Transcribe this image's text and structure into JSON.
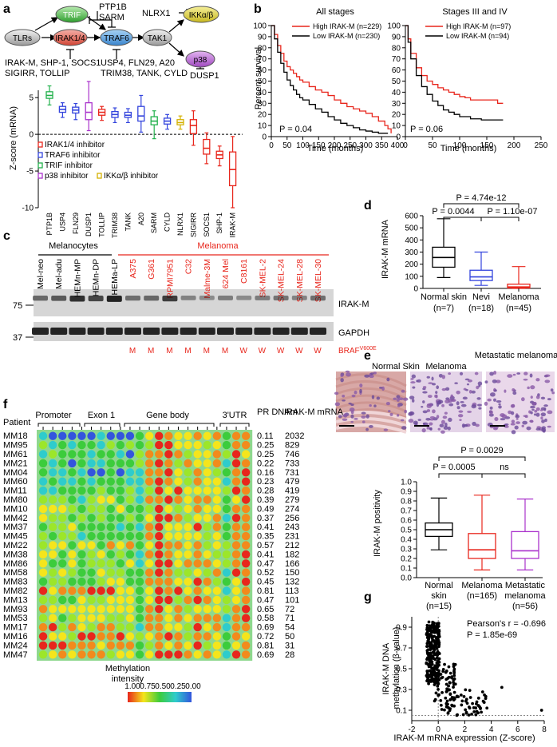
{
  "panels": {
    "a": "a",
    "b": "b",
    "c": "c",
    "d": "d",
    "e": "e",
    "f": "f",
    "g": "g"
  },
  "panel_a": {
    "pathway_nodes": [
      "TLRs",
      "TRIF",
      "IRAK1/4",
      "TRAF6",
      "TAK1",
      "IKKα/β",
      "p38"
    ],
    "labels": {
      "ptp1b_sarm": [
        "PTP1B",
        "SARM"
      ],
      "nlrx1": "NLRX1",
      "irak_inhib": [
        "IRAK-M, SHP-1, SOCS1",
        "SIGIRR, TOLLIP"
      ],
      "traf6_inhib": [
        "USP4, FLN29, A20",
        "TRIM38, TANK, CYLD"
      ],
      "p38_inhib": "DUSP1"
    },
    "legend": [
      "IRAK1/4 inhibitor",
      "TRAF6 inhibitor",
      "TRIF inhibitor",
      "p38 inhibitor",
      "IKKα/β inhibitor"
    ]
  },
  "chart_data": [
    {
      "id": "a",
      "type": "box",
      "ylabel": "Z-score (mRNA)",
      "ylim": [
        -10,
        6
      ],
      "yticks": [
        -10,
        -5,
        0,
        5
      ],
      "categories": [
        "PTP1B",
        "USP4",
        "FLN29",
        "DUSP1",
        "TOLLIP",
        "TRIM38",
        "TANK",
        "A20",
        "SARM",
        "CYLD",
        "NLRX1",
        "SIGIRR",
        "SOCS1",
        "SHP-1",
        "IRAK-M"
      ],
      "colors": [
        "#22b14c",
        "#3344dd",
        "#3344dd",
        "#aa33cc",
        "#e8261c",
        "#3344dd",
        "#3344dd",
        "#3344dd",
        "#22b14c",
        "#3344dd",
        "#d4b000",
        "#e8261c",
        "#e8261c",
        "#e8261c",
        "#e8261c"
      ],
      "boxes": [
        {
          "min": 4.0,
          "q1": 4.9,
          "med": 5.3,
          "q3": 5.8,
          "max": 6.6
        },
        {
          "min": 2.3,
          "q1": 3.0,
          "med": 3.4,
          "q3": 3.8,
          "max": 4.3
        },
        {
          "min": 2.0,
          "q1": 2.9,
          "med": 3.3,
          "q3": 3.7,
          "max": 4.2
        },
        {
          "min": 0.5,
          "q1": 2.0,
          "med": 3.0,
          "q3": 4.3,
          "max": 7.2
        },
        {
          "min": 1.9,
          "q1": 2.6,
          "med": 3.0,
          "q3": 3.4,
          "max": 3.8
        },
        {
          "min": 1.6,
          "q1": 2.3,
          "med": 2.7,
          "q3": 3.1,
          "max": 3.6
        },
        {
          "min": 1.6,
          "q1": 2.3,
          "med": 2.6,
          "q3": 3.0,
          "max": 3.5
        },
        {
          "min": 0.3,
          "q1": 1.8,
          "med": 2.5,
          "q3": 3.8,
          "max": 5.3
        },
        {
          "min": -0.6,
          "q1": 1.3,
          "med": 1.8,
          "q3": 2.4,
          "max": 3.2
        },
        {
          "min": 0.7,
          "q1": 1.4,
          "med": 1.8,
          "q3": 2.2,
          "max": 2.7
        },
        {
          "min": 0.7,
          "q1": 1.3,
          "med": 1.6,
          "q3": 2.0,
          "max": 2.5
        },
        {
          "min": -1.5,
          "q1": 0.1,
          "med": 1.2,
          "q3": 2.0,
          "max": 3.2
        },
        {
          "min": -4.0,
          "q1": -2.7,
          "med": -1.9,
          "q3": -0.7,
          "max": 0.2
        },
        {
          "min": -4.3,
          "q1": -3.3,
          "med": -2.8,
          "q3": -2.3,
          "max": -1.6
        },
        {
          "min": -10.0,
          "q1": -7.0,
          "med": -4.8,
          "q3": -2.4,
          "max": -0.3
        }
      ]
    },
    {
      "id": "b1",
      "type": "line",
      "title": "All stages",
      "xlabel": "Time (months)",
      "ylabel": "Percent survival",
      "xlim": [
        0,
        400
      ],
      "ylim": [
        0,
        100
      ],
      "xticks": [
        0,
        50,
        100,
        150,
        200,
        250,
        300,
        350,
        400
      ],
      "yticks": [
        0,
        10,
        20,
        30,
        40,
        50,
        60,
        70,
        80,
        90,
        100
      ],
      "annotation": "P = 0.04",
      "series": [
        {
          "name": "High IRAK-M (n=229)",
          "color": "#e8261c",
          "x": [
            0,
            10,
            20,
            30,
            40,
            50,
            60,
            70,
            80,
            90,
            100,
            120,
            140,
            160,
            180,
            200,
            220,
            240,
            260,
            280,
            300,
            320,
            340,
            360,
            370,
            380
          ],
          "y": [
            100,
            92,
            82,
            75,
            68,
            63,
            60,
            57,
            54,
            51,
            49,
            45,
            42,
            40,
            37,
            33,
            30,
            27,
            25,
            23,
            21,
            18,
            14,
            10,
            7,
            3
          ]
        },
        {
          "name": "Low IRAK-M (n=230)",
          "color": "#000000",
          "x": [
            0,
            10,
            20,
            30,
            40,
            50,
            60,
            70,
            80,
            90,
            100,
            120,
            140,
            160,
            180,
            200,
            220,
            240,
            260,
            280,
            300,
            320,
            340,
            370
          ],
          "y": [
            100,
            88,
            76,
            66,
            58,
            51,
            46,
            42,
            38,
            35,
            33,
            29,
            25,
            22,
            18,
            15,
            12,
            10,
            8,
            6,
            5,
            4,
            3,
            3
          ]
        }
      ]
    },
    {
      "id": "b2",
      "type": "line",
      "title": "Stages III and IV",
      "xlabel": "Time (months)",
      "xlim": [
        0,
        250
      ],
      "ylim": [
        0,
        100
      ],
      "xticks": [
        0,
        50,
        100,
        150,
        200,
        250
      ],
      "yticks": [
        0,
        10,
        20,
        30,
        40,
        50,
        60,
        70,
        80,
        90,
        100
      ],
      "annotation": "P = 0.06",
      "series": [
        {
          "name": "High IRAK-M (n=97)",
          "color": "#e8261c",
          "x": [
            0,
            5,
            10,
            20,
            30,
            40,
            50,
            60,
            70,
            80,
            90,
            100,
            110,
            120,
            140,
            160,
            170,
            180
          ],
          "y": [
            100,
            88,
            75,
            62,
            55,
            50,
            47,
            44,
            42,
            40,
            38,
            36,
            35,
            33,
            33,
            33,
            30,
            30
          ]
        },
        {
          "name": "Low IRAK-M (n=94)",
          "color": "#000000",
          "x": [
            0,
            5,
            10,
            20,
            30,
            40,
            50,
            60,
            70,
            80,
            90,
            100,
            120,
            140,
            160,
            180
          ],
          "y": [
            100,
            85,
            70,
            55,
            45,
            38,
            32,
            28,
            24,
            22,
            20,
            18,
            16,
            15,
            15,
            15
          ]
        }
      ]
    },
    {
      "id": "d",
      "type": "box",
      "ylabel": "IRAK-M mRNA",
      "ylim": [
        0,
        600
      ],
      "yticks": [
        0,
        100,
        200,
        300,
        400,
        500,
        600
      ],
      "categories": [
        "Normal skin",
        "Nevi",
        "Melanoma"
      ],
      "sublabels": [
        "(n=7)",
        "(n=18)",
        "(n=45)"
      ],
      "colors": [
        "#000000",
        "#3344dd",
        "#e8261c"
      ],
      "boxes": [
        {
          "min": 90,
          "q1": 175,
          "med": 255,
          "q3": 340,
          "max": 575
        },
        {
          "min": 25,
          "q1": 65,
          "med": 95,
          "q3": 150,
          "max": 300
        },
        {
          "min": 0,
          "q1": 3,
          "med": 12,
          "q3": 35,
          "max": 180
        }
      ],
      "pvalues": [
        "P = 4.74e-12",
        "P = 0.0044",
        "P = 1.10e-07"
      ]
    },
    {
      "id": "e",
      "type": "box",
      "ylabel": "IRAK-M positivity",
      "ylim": [
        0,
        1.0
      ],
      "yticks": [
        "0.0",
        "0.1",
        "0.2",
        "0.3",
        "0.4",
        "0.5",
        "0.6",
        "0.7",
        "0.8",
        "0.9",
        "1.0"
      ],
      "categories": [
        "Normal skin",
        "Melanoma",
        "Metastatic melanoma"
      ],
      "sublabels": [
        "(n=15)",
        "(n=165)",
        "(n=56)"
      ],
      "colors": [
        "#000000",
        "#e8261c",
        "#aa33cc"
      ],
      "boxes": [
        {
          "min": 0.29,
          "q1": 0.43,
          "med": 0.5,
          "q3": 0.57,
          "max": 0.83
        },
        {
          "min": 0.08,
          "q1": 0.2,
          "med": 0.29,
          "q3": 0.46,
          "max": 0.86
        },
        {
          "min": 0.08,
          "q1": 0.2,
          "med": 0.28,
          "q3": 0.48,
          "max": 0.82
        }
      ],
      "pvalues": [
        "P = 0.0029",
        "P = 0.0005",
        "ns"
      ]
    },
    {
      "id": "g",
      "type": "scatter",
      "xlabel": "IRAK-M mRNA expression (Z-score)",
      "ylabel": "IRAK-M DNA methylation (β-value)",
      "xlim": [
        -2,
        8
      ],
      "ylim": [
        0,
        1
      ],
      "xticks": [
        -2,
        0,
        2,
        4,
        6,
        8
      ],
      "yticks": [
        0.1,
        0.3,
        0.5,
        0.7,
        0.9
      ],
      "annotation": [
        "Pearson's r = -0.696",
        "P = 1.85e-69"
      ]
    }
  ],
  "panel_b": {
    "title_all": "All stages",
    "title_34": "Stages III and IV",
    "ylabel": "Percent survival",
    "xlabel": "Time (months)",
    "p_all": "P = 0.04",
    "p_34": "P = 0.06",
    "legend_all": [
      "High IRAK-M (n=229)",
      "Low IRAK-M (n=230)"
    ],
    "legend_34": [
      "High IRAK-M (n=97)",
      "Low IRAK-M (n=94)"
    ]
  },
  "panel_c": {
    "group_melanocytes": "Melanocytes",
    "group_melanoma": "Melanoma",
    "lanes": [
      "Mel-neo",
      "Mel-adu",
      "HEMn-MP",
      "HEMn-DP",
      "HEMa-LP",
      "A375",
      "G361",
      "RPMI7951",
      "C32",
      "Malme-3M",
      "624 Mel",
      "C8161",
      "SK-MEL-2",
      "SK-MEL-24",
      "SK-MEL-28",
      "SK-MEL-30"
    ],
    "markers": [
      "75",
      "37"
    ],
    "bands": [
      "IRAK-M",
      "GAPDH"
    ],
    "braf": [
      "M",
      "M",
      "M",
      "M",
      "M",
      "M",
      "W",
      "W",
      "W",
      "W",
      "W"
    ],
    "braf_label": "BRAF",
    "braf_sup": "V600E",
    "irak_intensity": [
      0.45,
      0.55,
      0.85,
      0.7,
      0.95,
      0.4,
      0.45,
      0.75,
      0.25,
      0.2,
      0.3,
      0.2,
      0.3,
      0.35,
      0.25,
      0.4
    ]
  },
  "panel_e": {
    "images": [
      "Normal Skin",
      "Melanoma",
      "Metastatic melanoma"
    ]
  },
  "panel_f": {
    "patient_label": "Patient",
    "regions": [
      "Promoter",
      "Exon 1",
      "Gene body",
      "3'UTR"
    ],
    "col_headers": [
      "PR DNAm",
      "IRAK-M mRNA"
    ],
    "rows": [
      {
        "id": "MM18",
        "pr": "0.11",
        "mrna": "2032"
      },
      {
        "id": "MM95",
        "pr": "0.25",
        "mrna": "829"
      },
      {
        "id": "MM61",
        "pr": "0.25",
        "mrna": "746"
      },
      {
        "id": "MM21",
        "pr": "0.22",
        "mrna": "733"
      },
      {
        "id": "MM04",
        "pr": "0.16",
        "mrna": "731"
      },
      {
        "id": "MM60",
        "pr": "0.23",
        "mrna": "479"
      },
      {
        "id": "MM11",
        "pr": "0.28",
        "mrna": "419"
      },
      {
        "id": "MM80",
        "pr": "0.39",
        "mrna": "279"
      },
      {
        "id": "MM10",
        "pr": "0.49",
        "mrna": "274"
      },
      {
        "id": "MM42",
        "pr": "0.37",
        "mrna": "256"
      },
      {
        "id": "MM37",
        "pr": "0.41",
        "mrna": "243"
      },
      {
        "id": "MM45",
        "pr": "0.35",
        "mrna": "231"
      },
      {
        "id": "MM22",
        "pr": "0.57",
        "mrna": "212"
      },
      {
        "id": "MM38",
        "pr": "0.41",
        "mrna": "182"
      },
      {
        "id": "MM86",
        "pr": "0.47",
        "mrna": "166"
      },
      {
        "id": "MM58",
        "pr": "0.52",
        "mrna": "150"
      },
      {
        "id": "MM83",
        "pr": "0.45",
        "mrna": "132"
      },
      {
        "id": "MM82",
        "pr": "0.81",
        "mrna": "113"
      },
      {
        "id": "MM13",
        "pr": "0.47",
        "mrna": "101"
      },
      {
        "id": "MM93",
        "pr": "0.65",
        "mrna": "72"
      },
      {
        "id": "MM53",
        "pr": "0.58",
        "mrna": "71"
      },
      {
        "id": "MM17",
        "pr": "0.69",
        "mrna": "54"
      },
      {
        "id": "MM16",
        "pr": "0.72",
        "mrna": "50"
      },
      {
        "id": "MM24",
        "pr": "0.81",
        "mrna": "31"
      },
      {
        "id": "MM47",
        "pr": "0.69",
        "mrna": "28"
      }
    ],
    "scale_title": [
      "Methylation",
      "intensity"
    ],
    "scale_ticks": [
      "1.00",
      "0.75",
      "0.50",
      "0.25",
      "0.00"
    ]
  }
}
